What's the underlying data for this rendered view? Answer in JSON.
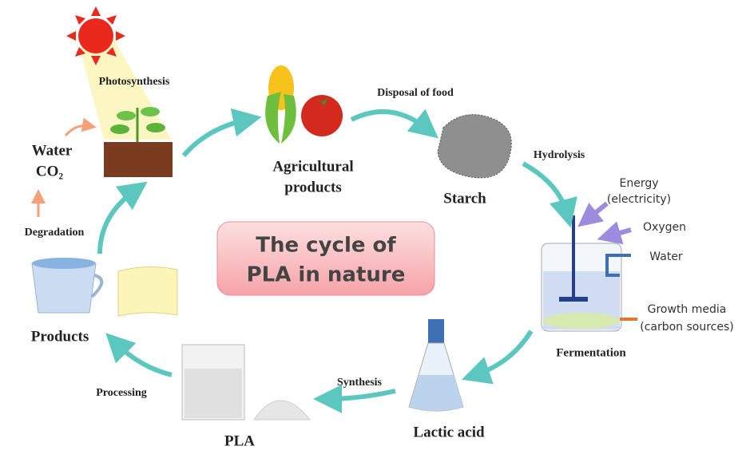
{
  "center_title": [
    "The cycle of",
    "PLA in nature"
  ],
  "photosynthesis": "Photosynthesis",
  "water_co2": [
    "Water",
    "CO₂"
  ],
  "degradation": "Degradation",
  "products": "Products",
  "processing": "Processing",
  "pla": "PLA",
  "synthesis": "Synthesis",
  "lactic_acid": "Lactic acid",
  "fermentation": "Fermentation",
  "growth_media": [
    "Growth media",
    "(carbon sources)"
  ],
  "water": "Water",
  "oxygen": "Oxygen",
  "energy": [
    "Energy",
    "(electricity)"
  ],
  "hydrolysis": "Hydrolysis",
  "starch": "Starch",
  "disposal": "Disposal of food",
  "agricultural": [
    "Agricultural",
    "products"
  ]
}
